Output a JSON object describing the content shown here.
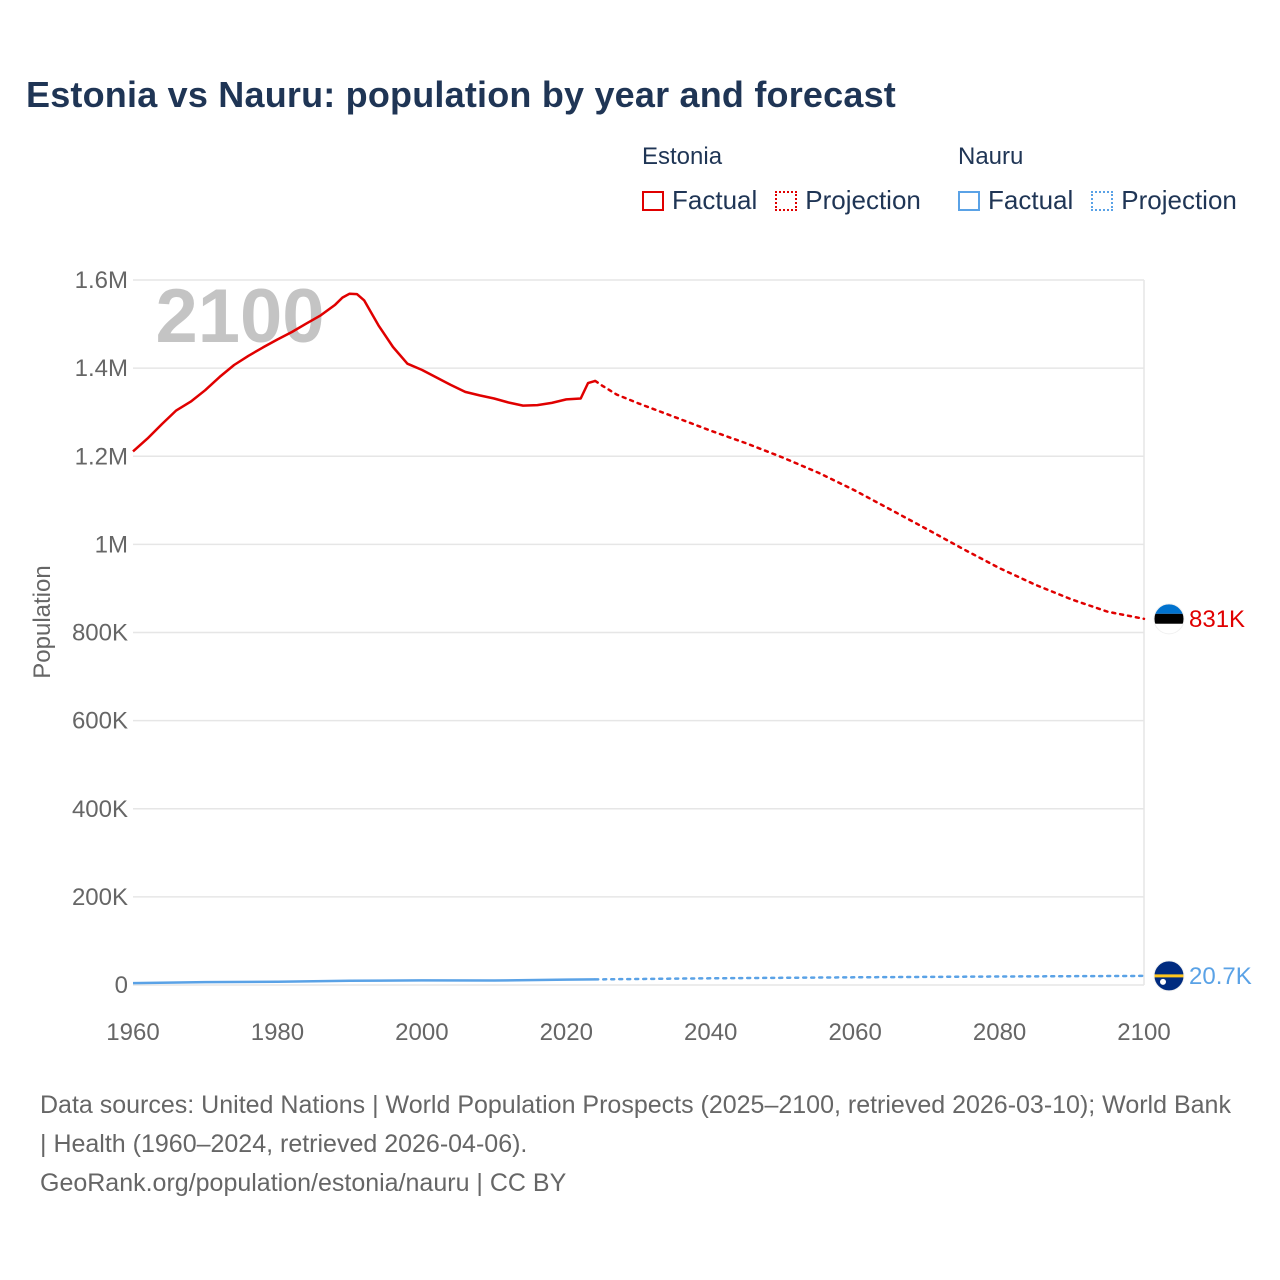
{
  "title": "Estonia vs Nauru: population by year and forecast",
  "legend": {
    "groups": [
      {
        "name": "Estonia",
        "color": "#e00000",
        "factual_label": "Factual",
        "projection_label": "Projection"
      },
      {
        "name": "Nauru",
        "color": "#5aa2e6",
        "factual_label": "Factual",
        "projection_label": "Projection"
      }
    ]
  },
  "footer": {
    "sources": "Data sources: United Nations | World Population Prospects (2025–2100, retrieved 2026-03-10); World Bank | Health (1960–2024, retrieved 2026-04-06).",
    "attribution": "GeoRank.org/population/estonia/nauru | CC BY"
  },
  "chart_data": {
    "type": "line",
    "title": "Estonia vs Nauru: population by year and forecast",
    "xlabel": "",
    "ylabel": "Population",
    "xlim": [
      1960,
      2100
    ],
    "ylim": [
      0,
      1600000
    ],
    "x_ticks": [
      1960,
      1980,
      2000,
      2020,
      2040,
      2060,
      2080,
      2100
    ],
    "x_tick_labels": [
      "1960",
      "1980",
      "2000",
      "2020",
      "2040",
      "2060",
      "2080",
      "2100"
    ],
    "y_ticks": [
      0,
      200000,
      400000,
      600000,
      800000,
      1000000,
      1200000,
      1400000,
      1600000
    ],
    "y_tick_labels": [
      "0",
      "200K",
      "400K",
      "600K",
      "800K",
      "1M",
      "1.2M",
      "1.4M",
      "1.6M"
    ],
    "year_watermark": "2100",
    "series": [
      {
        "name": "Estonia",
        "color": "#e00000",
        "end_label": "831K",
        "flag_colors": [
          "#0072ce",
          "#000000",
          "#ffffff"
        ],
        "factual": {
          "x": [
            1960,
            1962,
            1964,
            1966,
            1968,
            1970,
            1972,
            1974,
            1976,
            1978,
            1980,
            1982,
            1984,
            1986,
            1988,
            1989,
            1990,
            1991,
            1992,
            1994,
            1996,
            1998,
            2000,
            2002,
            2004,
            2006,
            2008,
            2010,
            2012,
            2014,
            2016,
            2018,
            2020,
            2022,
            2023,
            2024
          ],
          "values": [
            1211000,
            1240000,
            1273000,
            1304000,
            1324000,
            1350000,
            1380000,
            1407000,
            1428000,
            1447000,
            1465000,
            1482000,
            1501000,
            1520000,
            1544000,
            1560000,
            1569000,
            1568000,
            1554000,
            1497000,
            1448000,
            1410000,
            1396000,
            1379000,
            1362000,
            1346000,
            1338000,
            1331000,
            1322000,
            1315000,
            1316000,
            1321000,
            1329000,
            1331000,
            1366000,
            1371000
          ]
        },
        "projection": {
          "x": [
            2024,
            2025,
            2027,
            2030,
            2035,
            2040,
            2045,
            2050,
            2055,
            2060,
            2065,
            2070,
            2075,
            2080,
            2085,
            2090,
            2095,
            2100
          ],
          "values": [
            1371000,
            1360000,
            1340000,
            1320000,
            1289000,
            1258000,
            1229000,
            1197000,
            1162000,
            1122000,
            1078000,
            1034000,
            989000,
            946000,
            908000,
            875000,
            847000,
            831000
          ]
        }
      },
      {
        "name": "Nauru",
        "color": "#5aa2e6",
        "end_label": "20.7K",
        "flag_colors": [
          "#002b7f",
          "#ffc61e",
          "#ffffff"
        ],
        "factual": {
          "x": [
            1960,
            1970,
            1980,
            1990,
            2000,
            2010,
            2020,
            2024
          ],
          "values": [
            4400,
            6600,
            7600,
            9500,
            10400,
            10200,
            12300,
            12700
          ]
        },
        "projection": {
          "x": [
            2024,
            2040,
            2060,
            2080,
            2100
          ],
          "values": [
            12700,
            15200,
            17500,
            19300,
            20700
          ]
        }
      }
    ]
  }
}
